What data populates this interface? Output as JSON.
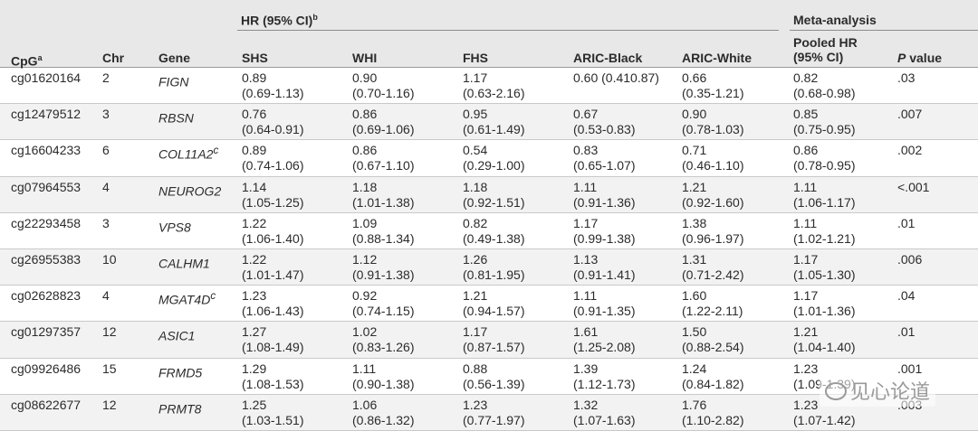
{
  "header": {
    "group_hr": "HR (95% CI)",
    "group_hr_sup": "b",
    "group_meta": "Meta-analysis",
    "columns": {
      "cpg": "CpG",
      "cpg_sup": "a",
      "chr": "Chr",
      "gene": "Gene",
      "shs": "SHS",
      "whi": "WHI",
      "fhs": "FHS",
      "aric_black": "ARIC-Black",
      "aric_white": "ARIC-White",
      "pooled_line1": "Pooled HR",
      "pooled_line2": "(95% CI)",
      "p_italic": "P",
      "p_rest": " value"
    }
  },
  "rows": [
    {
      "cpg": "cg01620164",
      "chr": "2",
      "gene": "FIGN",
      "gene_sup": "",
      "shs": [
        "0.89",
        "(0.69-1.13)"
      ],
      "whi": [
        "0.90",
        "(0.70-1.16)"
      ],
      "fhs": [
        "1.17",
        "(0.63-2.16)"
      ],
      "ab": [
        "0.60 (0.410.87)",
        ""
      ],
      "aw": [
        "0.66",
        "(0.35-1.21)"
      ],
      "pooled": [
        "0.82",
        "(0.68-0.98)"
      ],
      "p": ".03"
    },
    {
      "cpg": "cg12479512",
      "chr": "3",
      "gene": "RBSN",
      "gene_sup": "",
      "shs": [
        "0.76",
        "(0.64-0.91)"
      ],
      "whi": [
        "0.86",
        "(0.69-1.06)"
      ],
      "fhs": [
        "0.95",
        "(0.61-1.49)"
      ],
      "ab": [
        "0.67",
        "(0.53-0.83)"
      ],
      "aw": [
        "0.90",
        "(0.78-1.03)"
      ],
      "pooled": [
        "0.85",
        "(0.75-0.95)"
      ],
      "p": ".007"
    },
    {
      "cpg": "cg16604233",
      "chr": "6",
      "gene": "COL11A2",
      "gene_sup": "c",
      "shs": [
        "0.89",
        "(0.74-1.06)"
      ],
      "whi": [
        "0.86",
        "(0.67-1.10)"
      ],
      "fhs": [
        "0.54",
        "(0.29-1.00)"
      ],
      "ab": [
        "0.83",
        "(0.65-1.07)"
      ],
      "aw": [
        "0.71",
        "(0.46-1.10)"
      ],
      "pooled": [
        "0.86",
        "(0.78-0.95)"
      ],
      "p": ".002"
    },
    {
      "cpg": "cg07964553",
      "chr": "4",
      "gene": "NEUROG2",
      "gene_sup": "",
      "shs": [
        "1.14",
        "(1.05-1.25)"
      ],
      "whi": [
        "1.18",
        "(1.01-1.38)"
      ],
      "fhs": [
        "1.18",
        "(0.92-1.51)"
      ],
      "ab": [
        "1.11",
        "(0.91-1.36)"
      ],
      "aw": [
        "1.21",
        "(0.92-1.60)"
      ],
      "pooled": [
        "1.11",
        "(1.06-1.17)"
      ],
      "p": "<.001"
    },
    {
      "cpg": "cg22293458",
      "chr": "3",
      "gene": "VPS8",
      "gene_sup": "",
      "shs": [
        "1.22",
        "(1.06-1.40)"
      ],
      "whi": [
        "1.09",
        "(0.88-1.34)"
      ],
      "fhs": [
        "0.82",
        "(0.49-1.38)"
      ],
      "ab": [
        "1.17",
        "(0.99-1.38)"
      ],
      "aw": [
        "1.38",
        "(0.96-1.97)"
      ],
      "pooled": [
        "1.11",
        "(1.02-1.21)"
      ],
      "p": ".01"
    },
    {
      "cpg": "cg26955383",
      "chr": "10",
      "gene": "CALHM1",
      "gene_sup": "",
      "shs": [
        "1.22",
        "(1.01-1.47)"
      ],
      "whi": [
        "1.12",
        "(0.91-1.38)"
      ],
      "fhs": [
        "1.26",
        "(0.81-1.95)"
      ],
      "ab": [
        "1.13",
        "(0.91-1.41)"
      ],
      "aw": [
        "1.31",
        "(0.71-2.42)"
      ],
      "pooled": [
        "1.17",
        "(1.05-1.30)"
      ],
      "p": ".006"
    },
    {
      "cpg": "cg02628823",
      "chr": "4",
      "gene": "MGAT4D",
      "gene_sup": "c",
      "shs": [
        "1.23",
        "(1.06-1.43)"
      ],
      "whi": [
        "0.92",
        "(0.74-1.15)"
      ],
      "fhs": [
        "1.21",
        "(0.94-1.57)"
      ],
      "ab": [
        "1.11",
        "(0.91-1.35)"
      ],
      "aw": [
        "1.60",
        "(1.22-2.11)"
      ],
      "pooled": [
        "1.17",
        "(1.01-1.36)"
      ],
      "p": ".04"
    },
    {
      "cpg": "cg01297357",
      "chr": "12",
      "gene": "ASIC1",
      "gene_sup": "",
      "shs": [
        "1.27",
        "(1.08-1.49)"
      ],
      "whi": [
        "1.02",
        "(0.83-1.26)"
      ],
      "fhs": [
        "1.17",
        "(0.87-1.57)"
      ],
      "ab": [
        "1.61",
        "(1.25-2.08)"
      ],
      "aw": [
        "1.50",
        "(0.88-2.54)"
      ],
      "pooled": [
        "1.21",
        "(1.04-1.40)"
      ],
      "p": ".01"
    },
    {
      "cpg": "cg09926486",
      "chr": "15",
      "gene": "FRMD5",
      "gene_sup": "",
      "shs": [
        "1.29",
        "(1.08-1.53)"
      ],
      "whi": [
        "1.11",
        "(0.90-1.38)"
      ],
      "fhs": [
        "0.88",
        "(0.56-1.39)"
      ],
      "ab": [
        "1.39",
        "(1.12-1.73)"
      ],
      "aw": [
        "1.24",
        "(0.84-1.82)"
      ],
      "pooled": [
        "1.23",
        "(1.09-1.39)"
      ],
      "p": ".001"
    },
    {
      "cpg": "cg08622677",
      "chr": "12",
      "gene": "PRMT8",
      "gene_sup": "",
      "shs": [
        "1.25",
        "(1.03-1.51)"
      ],
      "whi": [
        "1.06",
        "(0.86-1.32)"
      ],
      "fhs": [
        "1.23",
        "(0.77-1.97)"
      ],
      "ab": [
        "1.32",
        "(1.07-1.63)"
      ],
      "aw": [
        "1.76",
        "(1.10-2.82)"
      ],
      "pooled": [
        "1.23",
        "(1.07-1.42)"
      ],
      "p": ".003"
    }
  ],
  "watermark": {
    "text": "见心论道",
    "icon": "wechat-icon"
  }
}
